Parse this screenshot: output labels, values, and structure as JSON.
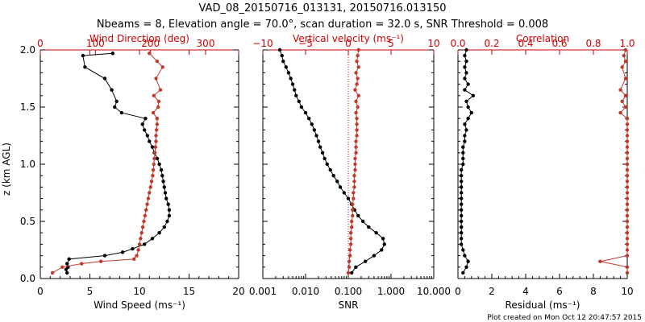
{
  "title": "VAD_08_20150716_013131, 20150716.013150",
  "subtitle": "Nbeams = 8, Elevation angle = 70.0°, scan duration = 32.0 s, SNR Threshold = 0.008",
  "footer": "Plot created on Mon Oct 12 20:47:57 2015",
  "colors": {
    "black": "#000000",
    "red": "#c0392b",
    "axis_red": "#cc0000",
    "dotted": "#cc0000"
  },
  "y_axis": {
    "label": "z (km AGL)",
    "ticks": [
      "0.0",
      "0.5",
      "1.0",
      "1.5",
      "2.0"
    ],
    "range": [
      0,
      2
    ]
  },
  "chart_data": [
    {
      "type": "line",
      "panel": "wind",
      "xlabel": "Wind Speed (ms⁻¹)",
      "x_ticks": [
        "0",
        "5",
        "10",
        "15",
        "20"
      ],
      "x_range": [
        0,
        20
      ],
      "top_label": "Wind Direction (deg)",
      "top_ticks": [
        "0",
        "100",
        "200",
        "300"
      ],
      "top_range": [
        0,
        360
      ],
      "series": [
        {
          "values": [
            [
              0.05,
              2.7
            ],
            [
              0.08,
              2.6
            ],
            [
              0.1,
              2.8
            ],
            [
              0.13,
              2.7
            ],
            [
              0.17,
              2.9
            ],
            [
              0.2,
              6.5
            ],
            [
              0.23,
              8.3
            ],
            [
              0.26,
              9.3
            ],
            [
              0.3,
              10.5
            ],
            [
              0.35,
              11.3
            ],
            [
              0.4,
              12.0
            ],
            [
              0.45,
              12.5
            ],
            [
              0.5,
              12.8
            ],
            [
              0.55,
              13.0
            ],
            [
              0.6,
              13.0
            ],
            [
              0.65,
              12.9
            ],
            [
              0.7,
              12.7
            ],
            [
              0.75,
              12.6
            ],
            [
              0.8,
              12.5
            ],
            [
              0.85,
              12.4
            ],
            [
              0.9,
              12.3
            ],
            [
              0.95,
              12.2
            ],
            [
              1.0,
              12.0
            ],
            [
              1.05,
              11.8
            ],
            [
              1.1,
              11.5
            ],
            [
              1.15,
              11.3
            ],
            [
              1.2,
              11.0
            ],
            [
              1.25,
              10.8
            ],
            [
              1.3,
              10.5
            ],
            [
              1.35,
              10.3
            ],
            [
              1.4,
              10.6
            ],
            [
              1.45,
              8.2
            ],
            [
              1.5,
              7.5
            ],
            [
              1.55,
              7.7
            ],
            [
              1.65,
              7.2
            ],
            [
              1.75,
              6.5
            ],
            [
              1.85,
              4.5
            ],
            [
              1.95,
              4.3
            ],
            [
              1.97,
              7.3
            ]
          ]
        },
        {
          "values": [
            [
              0.05,
              22
            ],
            [
              0.1,
              40
            ],
            [
              0.13,
              75
            ],
            [
              0.15,
              110
            ],
            [
              0.17,
              170
            ],
            [
              0.2,
              175
            ],
            [
              0.25,
              178
            ],
            [
              0.3,
              180
            ],
            [
              0.35,
              182
            ],
            [
              0.4,
              184
            ],
            [
              0.45,
              186
            ],
            [
              0.5,
              188
            ],
            [
              0.55,
              190
            ],
            [
              0.6,
              192
            ],
            [
              0.65,
              194
            ],
            [
              0.7,
              196
            ],
            [
              0.75,
              198
            ],
            [
              0.8,
              200
            ],
            [
              0.85,
              202
            ],
            [
              0.9,
              204
            ],
            [
              0.95,
              205
            ],
            [
              1.0,
              206
            ],
            [
              1.05,
              207
            ],
            [
              1.1,
              208
            ],
            [
              1.15,
              209
            ],
            [
              1.2,
              210
            ],
            [
              1.25,
              210
            ],
            [
              1.3,
              211
            ],
            [
              1.35,
              212
            ],
            [
              1.4,
              212
            ],
            [
              1.45,
              205
            ],
            [
              1.5,
              214
            ],
            [
              1.55,
              215
            ],
            [
              1.6,
              206
            ],
            [
              1.65,
              218
            ],
            [
              1.75,
              210
            ],
            [
              1.85,
              222
            ],
            [
              1.9,
              212
            ],
            [
              1.97,
              198
            ]
          ]
        }
      ]
    },
    {
      "type": "line",
      "panel": "snr",
      "xlabel": "SNR",
      "x_ticks": [
        "0.001",
        "0.010",
        "0.100",
        "1.000",
        "10.000"
      ],
      "x_scale": "log",
      "x_range": [
        0.001,
        10
      ],
      "top_label": "Vertical velocity (ms⁻¹)",
      "top_ticks": [
        "−10",
        "−5",
        "0",
        "5",
        "10"
      ],
      "top_range": [
        -10,
        10
      ],
      "series": [
        {
          "values": [
            [
              0.05,
              0.12
            ],
            [
              0.1,
              0.15
            ],
            [
              0.15,
              0.25
            ],
            [
              0.2,
              0.4
            ],
            [
              0.25,
              0.6
            ],
            [
              0.3,
              0.7
            ],
            [
              0.35,
              0.65
            ],
            [
              0.4,
              0.45
            ],
            [
              0.45,
              0.3
            ],
            [
              0.5,
              0.22
            ],
            [
              0.55,
              0.17
            ],
            [
              0.6,
              0.14
            ],
            [
              0.65,
              0.12
            ],
            [
              0.7,
              0.1
            ],
            [
              0.75,
              0.08
            ],
            [
              0.8,
              0.065
            ],
            [
              0.85,
              0.055
            ],
            [
              0.9,
              0.045
            ],
            [
              0.95,
              0.038
            ],
            [
              1.0,
              0.032
            ],
            [
              1.05,
              0.028
            ],
            [
              1.1,
              0.025
            ],
            [
              1.15,
              0.022
            ],
            [
              1.2,
              0.02
            ],
            [
              1.25,
              0.018
            ],
            [
              1.3,
              0.016
            ],
            [
              1.35,
              0.014
            ],
            [
              1.4,
              0.012
            ],
            [
              1.45,
              0.01
            ],
            [
              1.5,
              0.008
            ],
            [
              1.55,
              0.007
            ],
            [
              1.6,
              0.006
            ],
            [
              1.65,
              0.0055
            ],
            [
              1.7,
              0.005
            ],
            [
              1.75,
              0.0045
            ],
            [
              1.8,
              0.004
            ],
            [
              1.85,
              0.0035
            ],
            [
              1.9,
              0.003
            ],
            [
              1.95,
              0.0028
            ],
            [
              2.0,
              0.0025
            ]
          ]
        },
        {
          "values": [
            [
              0.05,
              0.0
            ],
            [
              0.1,
              0.1
            ],
            [
              0.15,
              0.1
            ],
            [
              0.2,
              0.2
            ],
            [
              0.25,
              0.2
            ],
            [
              0.3,
              0.3
            ],
            [
              0.35,
              0.3
            ],
            [
              0.4,
              0.3
            ],
            [
              0.45,
              0.4
            ],
            [
              0.5,
              0.4
            ],
            [
              0.55,
              0.5
            ],
            [
              0.6,
              0.5
            ],
            [
              0.65,
              0.5
            ],
            [
              0.7,
              0.6
            ],
            [
              0.75,
              0.6
            ],
            [
              0.8,
              0.7
            ],
            [
              0.85,
              0.7
            ],
            [
              0.9,
              0.7
            ],
            [
              0.95,
              0.8
            ],
            [
              1.0,
              0.8
            ],
            [
              1.05,
              0.8
            ],
            [
              1.1,
              0.9
            ],
            [
              1.15,
              0.9
            ],
            [
              1.2,
              0.9
            ],
            [
              1.25,
              1.0
            ],
            [
              1.3,
              1.0
            ],
            [
              1.35,
              1.0
            ],
            [
              1.4,
              1.0
            ],
            [
              1.45,
              0.9
            ],
            [
              1.5,
              1.1
            ],
            [
              1.55,
              0.9
            ],
            [
              1.6,
              1.2
            ],
            [
              1.65,
              0.8
            ],
            [
              1.7,
              1.0
            ],
            [
              1.75,
              1.1
            ],
            [
              1.8,
              0.9
            ],
            [
              1.85,
              1.2
            ],
            [
              1.9,
              1.0
            ],
            [
              1.95,
              1.1
            ],
            [
              2.0,
              1.2
            ]
          ]
        }
      ]
    },
    {
      "type": "line",
      "panel": "residual",
      "xlabel": "Residual (ms⁻¹)",
      "x_ticks": [
        "0",
        "2",
        "4",
        "6",
        "8",
        "10"
      ],
      "x_range": [
        0,
        10
      ],
      "top_label": "Correlation",
      "top_ticks": [
        "0.0",
        "0.2",
        "0.4",
        "0.6",
        "0.8",
        "1.0"
      ],
      "top_range": [
        0,
        1
      ],
      "series": [
        {
          "values": [
            [
              0.05,
              0.3
            ],
            [
              0.1,
              0.5
            ],
            [
              0.15,
              0.6
            ],
            [
              0.2,
              0.4
            ],
            [
              0.25,
              0.3
            ],
            [
              0.3,
              0.2
            ],
            [
              0.35,
              0.2
            ],
            [
              0.4,
              0.2
            ],
            [
              0.45,
              0.2
            ],
            [
              0.5,
              0.2
            ],
            [
              0.55,
              0.2
            ],
            [
              0.6,
              0.2
            ],
            [
              0.65,
              0.2
            ],
            [
              0.7,
              0.2
            ],
            [
              0.75,
              0.2
            ],
            [
              0.8,
              0.2
            ],
            [
              0.85,
              0.2
            ],
            [
              0.9,
              0.2
            ],
            [
              0.95,
              0.2
            ],
            [
              1.0,
              0.3
            ],
            [
              1.05,
              0.3
            ],
            [
              1.1,
              0.3
            ],
            [
              1.15,
              0.3
            ],
            [
              1.2,
              0.4
            ],
            [
              1.25,
              0.4
            ],
            [
              1.3,
              0.5
            ],
            [
              1.35,
              0.4
            ],
            [
              1.4,
              0.6
            ],
            [
              1.45,
              0.8
            ],
            [
              1.5,
              0.6
            ],
            [
              1.55,
              0.5
            ],
            [
              1.6,
              0.9
            ],
            [
              1.65,
              0.4
            ],
            [
              1.7,
              0.6
            ],
            [
              1.75,
              0.4
            ],
            [
              1.8,
              0.5
            ],
            [
              1.85,
              0.4
            ],
            [
              1.9,
              0.5
            ],
            [
              1.95,
              0.4
            ],
            [
              2.0,
              0.5
            ]
          ]
        },
        {
          "values": [
            [
              0.05,
              1.0
            ],
            [
              0.1,
              1.0
            ],
            [
              0.15,
              0.84
            ],
            [
              0.2,
              1.0
            ],
            [
              0.25,
              1.0
            ],
            [
              0.3,
              1.0
            ],
            [
              0.35,
              1.0
            ],
            [
              0.4,
              1.0
            ],
            [
              0.45,
              1.0
            ],
            [
              0.5,
              1.0
            ],
            [
              0.55,
              1.0
            ],
            [
              0.6,
              1.0
            ],
            [
              0.65,
              1.0
            ],
            [
              0.7,
              1.0
            ],
            [
              0.75,
              1.0
            ],
            [
              0.8,
              1.0
            ],
            [
              0.85,
              1.0
            ],
            [
              0.9,
              1.0
            ],
            [
              0.95,
              1.0
            ],
            [
              1.0,
              1.0
            ],
            [
              1.05,
              1.0
            ],
            [
              1.1,
              1.0
            ],
            [
              1.15,
              1.0
            ],
            [
              1.2,
              1.0
            ],
            [
              1.25,
              1.0
            ],
            [
              1.3,
              1.0
            ],
            [
              1.35,
              1.0
            ],
            [
              1.4,
              1.0
            ],
            [
              1.45,
              0.96
            ],
            [
              1.5,
              0.99
            ],
            [
              1.55,
              0.97
            ],
            [
              1.6,
              0.99
            ],
            [
              1.65,
              0.96
            ],
            [
              1.75,
              0.99
            ],
            [
              1.85,
              0.97
            ],
            [
              1.9,
              0.99
            ],
            [
              1.95,
              0.98
            ],
            [
              2.0,
              0.99
            ]
          ]
        }
      ]
    }
  ]
}
